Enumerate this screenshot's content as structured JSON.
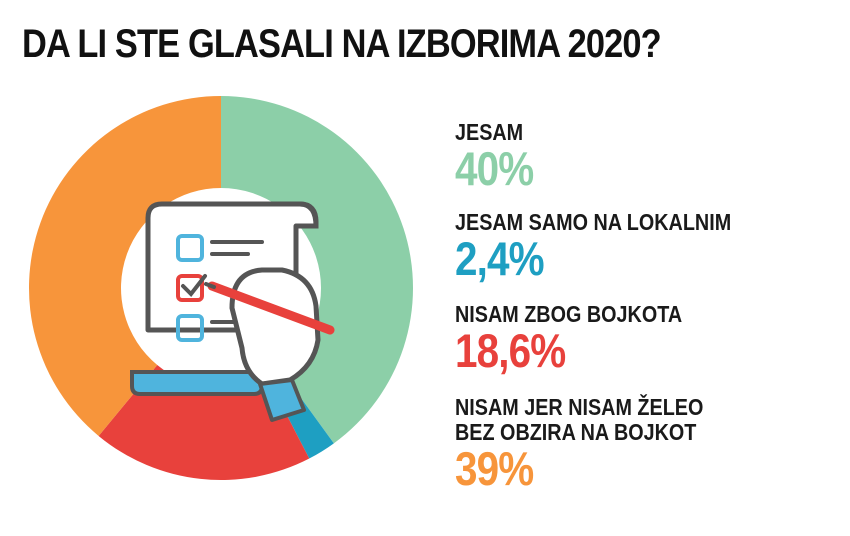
{
  "chart_data": {
    "type": "pie",
    "title": "DA LI STE GLASALI NA IZBORIMA 2020?",
    "labels": [
      "JESAM",
      "JESAM SAMO NA LOKALNIM",
      "NISAM ZBOG BOJKOTA",
      "NISAM JER NISAM ŽELEO\nBEZ OBZIRA NA BOJKOT"
    ],
    "values": [
      40,
      2.4,
      18.6,
      39
    ],
    "value_labels": [
      "40%",
      "2,4%",
      "18,6%",
      "39%"
    ],
    "colors": [
      "#8ccfa8",
      "#1e9fc2",
      "#e8413c",
      "#f7953b"
    ],
    "legend_position": "right",
    "donut": true
  },
  "icon": "checklist-hand-icon"
}
